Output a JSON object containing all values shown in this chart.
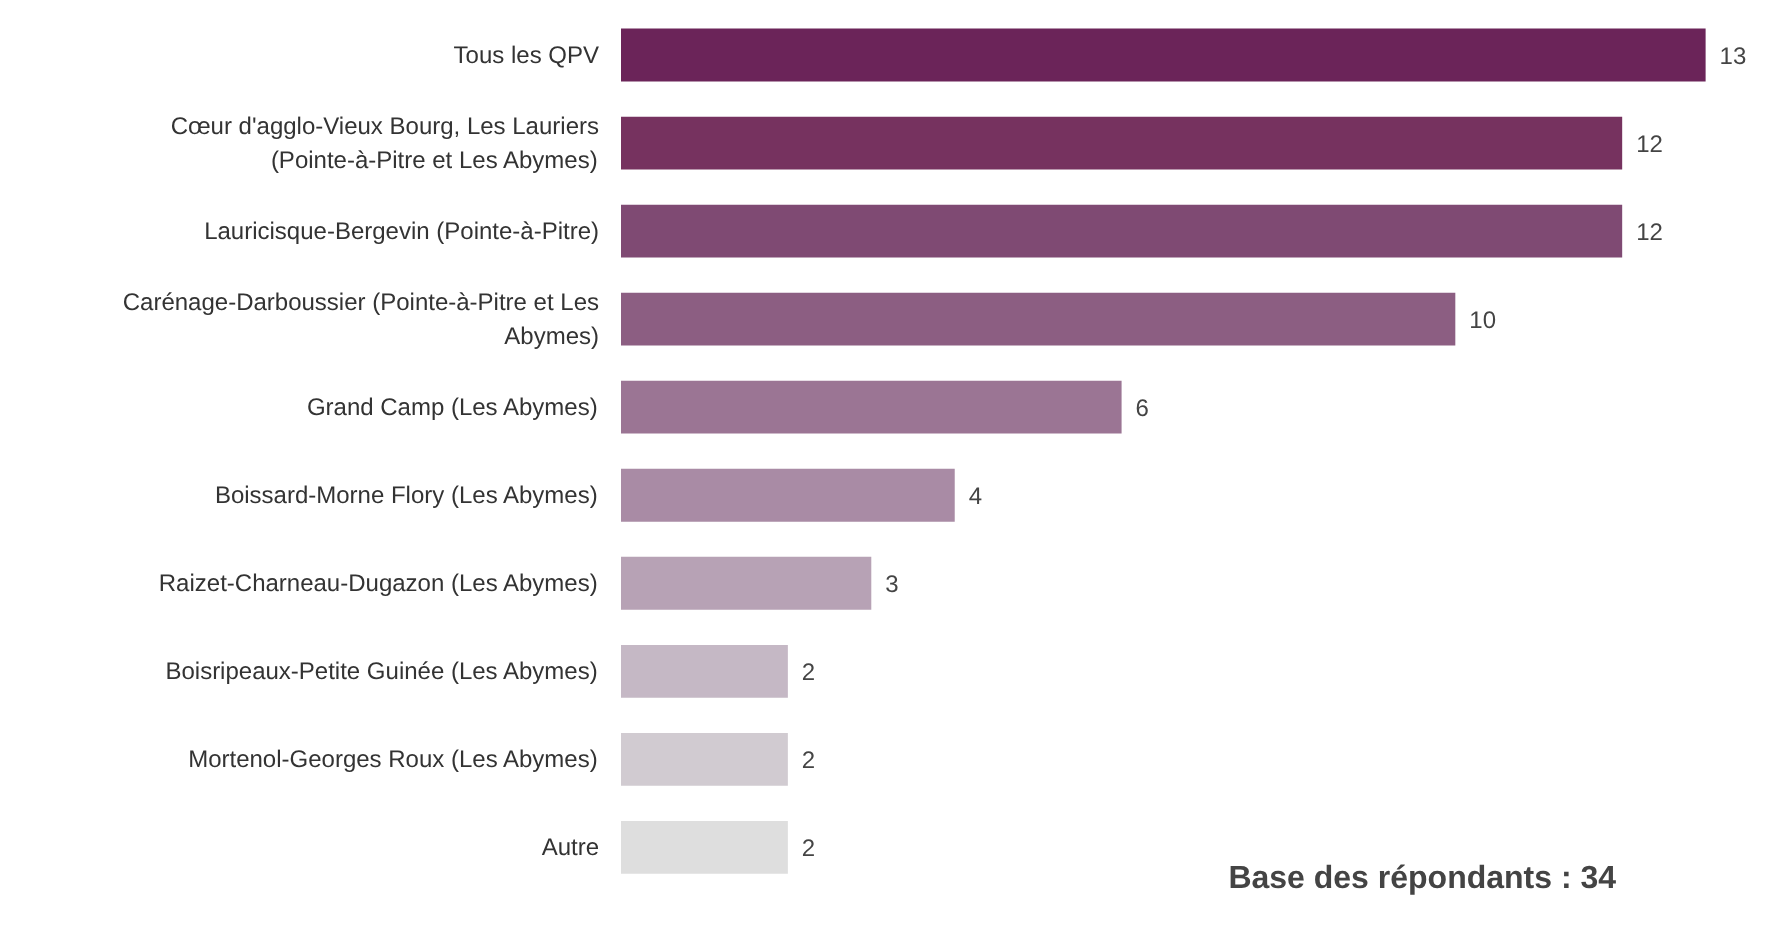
{
  "chart_data": {
    "type": "bar",
    "orientation": "horizontal",
    "categories": [
      "Tous les QPV",
      "Cœur d'agglo-Vieux Bourg, Les Lauriers (Pointe-à-Pitre et Les Abymes)",
      "Lauricisque-Bergevin (Pointe-à-Pitre)",
      "Carénage-Darboussier (Pointe-à-Pitre et Les Abymes)",
      "Grand Camp (Les Abymes)",
      "Boissard-Morne Flory (Les Abymes)",
      "Raizet-Charneau-Dugazon (Les Abymes)",
      "Boisripeaux-Petite Guinée (Les Abymes)",
      "Mortenol-Georges Roux (Les Abymes)",
      "Autre"
    ],
    "values": [
      13,
      12,
      12,
      10,
      6,
      4,
      3,
      2,
      2,
      2
    ],
    "colors": [
      "#6b2459",
      "#76325f",
      "#7f4a73",
      "#8c5e82",
      "#9b7594",
      "#a98ba5",
      "#b7a2b5",
      "#c5b8c5",
      "#d1cbd1",
      "#dedede"
    ],
    "data_labels": true,
    "grid": false,
    "tick_labels": "y",
    "annotations": [
      "Base des répondants : 34"
    ]
  }
}
